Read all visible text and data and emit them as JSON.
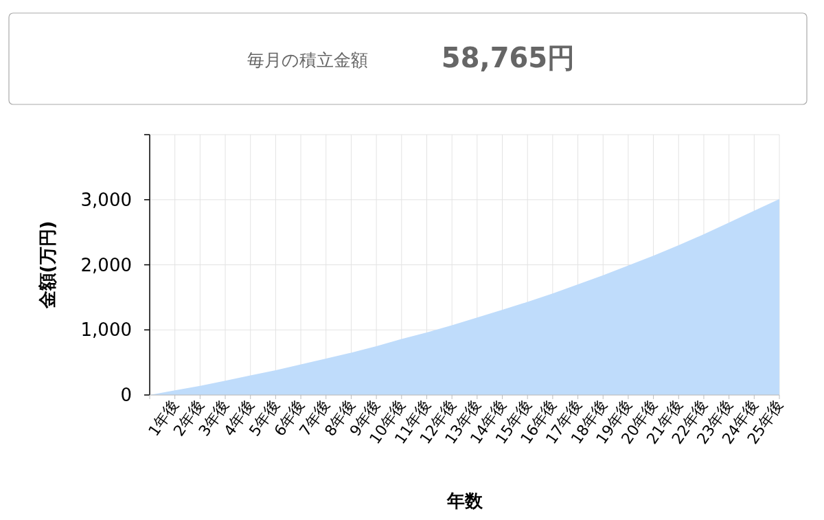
{
  "chart_data": {
    "type": "area",
    "title": "毎月の積立金額",
    "subtitle": "58,765円",
    "xlabel": "年数",
    "ylabel": "金額(万円)",
    "categories": [
      null,
      "1年後",
      "2年後",
      "3年後",
      "4年後",
      "5年後",
      "6年後",
      "7年後",
      "8年後",
      "9年後",
      "10年後",
      "11年後",
      "12年後",
      "13年後",
      "14年後",
      "15年後",
      "16年後",
      "17年後",
      "18年後",
      "19年後",
      "20年後",
      "21年後",
      "22年後",
      "23年後",
      "24年後",
      "25年後"
    ],
    "series": [
      {
        "color": "#bfdcfb",
        "values": [
          0,
          70,
          140,
          220,
          300,
          380,
          470,
          560,
          650,
          750,
          860,
          960,
          1070,
          1190,
          1310,
          1430,
          1560,
          1700,
          1840,
          1990,
          2140,
          2300,
          2470,
          2650,
          2830,
          3010
        ]
      }
    ],
    "ylim": [
      0,
      4000
    ],
    "yticks": [
      {
        "value": 0,
        "label": "0"
      },
      {
        "value": 1000,
        "label": "1,000"
      },
      {
        "value": 2000,
        "label": "2,000"
      },
      {
        "value": 3000,
        "label": "3,000"
      },
      {
        "value": 4000,
        "label": null
      }
    ],
    "grid": true
  }
}
